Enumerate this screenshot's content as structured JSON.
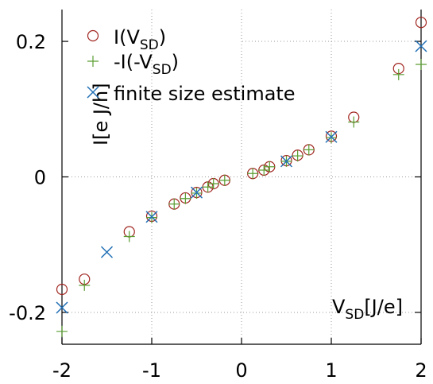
{
  "chart_data": {
    "type": "scatter",
    "title": "",
    "xlabel": "V",
    "xlabel_sub": "SD",
    "xlabel_tail": "[J/e]",
    "ylabel": "I[e J/h]",
    "xlim": [
      -2,
      2
    ],
    "ylim": [
      -0.247,
      0.247
    ],
    "x_ticks": [
      -2,
      -1,
      0,
      1,
      2
    ],
    "x_tick_labels": [
      "-2",
      "-1",
      "0",
      "1",
      "2"
    ],
    "y_ticks": [
      -0.2,
      0,
      0.2
    ],
    "y_tick_labels": [
      "-0.2",
      "0",
      "0.2"
    ],
    "grid": true,
    "legend_position": "top-left",
    "series": [
      {
        "name_main": "I(V",
        "name_sub": "SD",
        "name_tail": ")",
        "marker": "circle",
        "color": "#a0251f",
        "x": [
          -2,
          -1.75,
          -1.25,
          -1,
          -0.75,
          -0.625,
          -0.5,
          -0.375,
          -0.3125,
          -0.1875,
          0.125,
          0.25,
          0.3125,
          0.5,
          0.625,
          0.75,
          1,
          1.25,
          1.75,
          2
        ],
        "y": [
          -0.166,
          -0.151,
          -0.081,
          -0.058,
          -0.04,
          -0.031,
          -0.023,
          -0.015,
          -0.01,
          -0.005,
          0.005,
          0.01,
          0.015,
          0.024,
          0.032,
          0.04,
          0.06,
          0.088,
          0.16,
          0.228
        ]
      },
      {
        "name_main": "-I(-V",
        "name_sub": "SD",
        "name_tail": ")",
        "marker": "plus",
        "color": "#5a9e32",
        "x": [
          -2,
          -1.75,
          -1.25,
          -1,
          -0.75,
          -0.625,
          -0.5,
          -0.375,
          -0.3125,
          -0.1875,
          0.125,
          0.25,
          0.3125,
          0.5,
          0.625,
          0.75,
          1,
          1.25,
          1.75,
          2
        ],
        "y": [
          -0.228,
          -0.16,
          -0.088,
          -0.06,
          -0.04,
          -0.032,
          -0.024,
          -0.015,
          -0.01,
          -0.005,
          0.005,
          0.01,
          0.015,
          0.023,
          0.031,
          0.04,
          0.058,
          0.081,
          0.151,
          0.166
        ]
      },
      {
        "name": "finite size estimate",
        "marker": "cross",
        "color": "#2170b5",
        "x": [
          -2,
          -1.5,
          -1,
          -0.5,
          0.5,
          1,
          2
        ],
        "y": [
          -0.193,
          -0.111,
          -0.059,
          -0.023,
          0.023,
          0.059,
          0.193
        ]
      }
    ]
  }
}
